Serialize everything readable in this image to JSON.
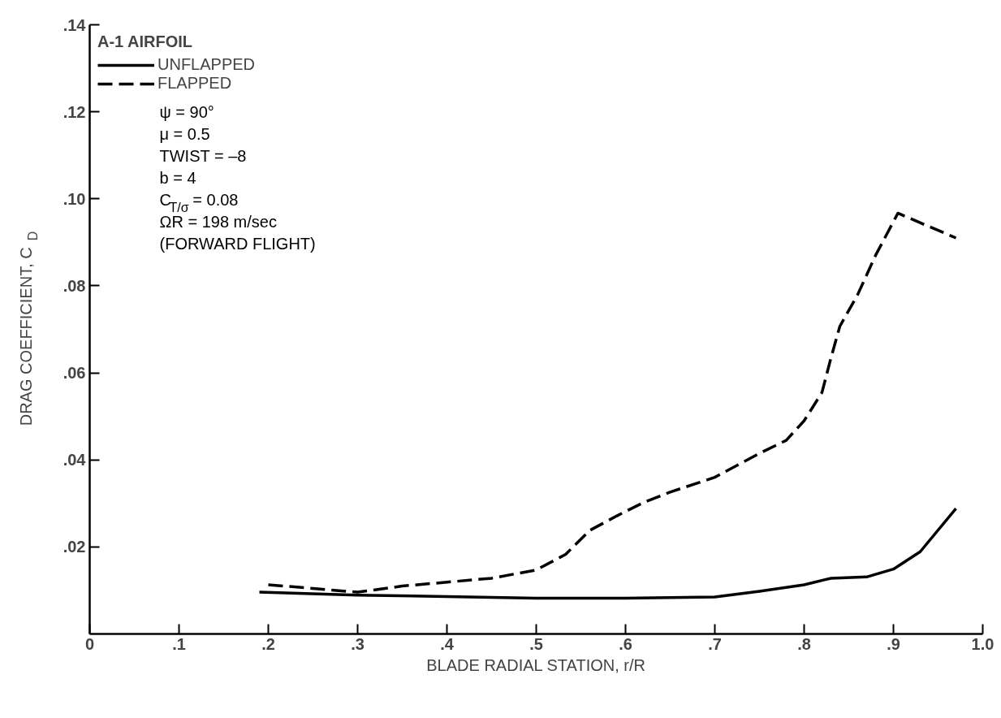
{
  "chart_data": {
    "type": "line",
    "legend_title": "A-1 AIRFOIL",
    "xlabel": "BLADE RADIAL STATION, r/R",
    "ylabel": "DRAG COEFFICIENT, C$_{D}$",
    "xlim": [
      0,
      1.0
    ],
    "ylim": [
      0,
      0.14
    ],
    "xticks": [
      0,
      {
        "value": 0.1,
        "label": ".1"
      },
      {
        "value": 0.2,
        "label": ".2"
      },
      {
        "value": 0.3,
        "label": ".3"
      },
      {
        "value": 0.4,
        "label": ".4"
      },
      {
        "value": 0.5,
        "label": ".5"
      },
      {
        "value": 0.6,
        "label": ".6"
      },
      {
        "value": 0.7,
        "label": ".7"
      },
      {
        "value": 0.8,
        "label": ".8"
      },
      {
        "value": 0.9,
        "label": ".9"
      },
      {
        "value": 1.0,
        "label": "1.0"
      }
    ],
    "yticks": [
      {
        "value": 0.02,
        "label": ".02"
      },
      {
        "value": 0.04,
        "label": ".04"
      },
      {
        "value": 0.06,
        "label": ".06"
      },
      {
        "value": 0.08,
        "label": ".08"
      },
      {
        "value": 0.1,
        "label": ".10"
      },
      {
        "value": 0.12,
        "label": ".12"
      },
      {
        "value": 0.14,
        "label": ".14"
      }
    ],
    "grid": false,
    "legend": "top left",
    "marker": "none",
    "series": [
      {
        "name": "UNFLAPPED",
        "color": "#000000",
        "line_style": "solid",
        "x": [
          0.19,
          0.3,
          0.4,
          0.5,
          0.6,
          0.7,
          0.75,
          0.8,
          0.83,
          0.87,
          0.9,
          0.93,
          0.97
        ],
        "values": [
          0.0096,
          0.0089,
          0.0086,
          0.0082,
          0.0082,
          0.0085,
          0.0098,
          0.0113,
          0.0128,
          0.0131,
          0.0149,
          0.0189,
          0.0288
        ]
      },
      {
        "name": "FLAPPED",
        "color": "#000000",
        "line_style": "dashed",
        "x": [
          0.2,
          0.3,
          0.35,
          0.4,
          0.45,
          0.5,
          0.533,
          0.56,
          0.59,
          0.62,
          0.65,
          0.7,
          0.75,
          0.78,
          0.8,
          0.82,
          0.83,
          0.84,
          0.86,
          0.88,
          0.905,
          0.97
        ],
        "values": [
          0.0113,
          0.0096,
          0.011,
          0.0119,
          0.0128,
          0.0147,
          0.0183,
          0.0238,
          0.0271,
          0.0302,
          0.0326,
          0.036,
          0.0415,
          0.0445,
          0.049,
          0.0555,
          0.0634,
          0.0707,
          0.078,
          0.087,
          0.0967,
          0.091
        ]
      }
    ],
    "annotations": [
      "ψ = 90°",
      "μ = 0.5",
      "TWIST = –8",
      "b = 4",
      "C$_{T/σ}$ = 0.08",
      "ΩR = 198 m/sec",
      "(FORWARD FLIGHT)"
    ]
  }
}
